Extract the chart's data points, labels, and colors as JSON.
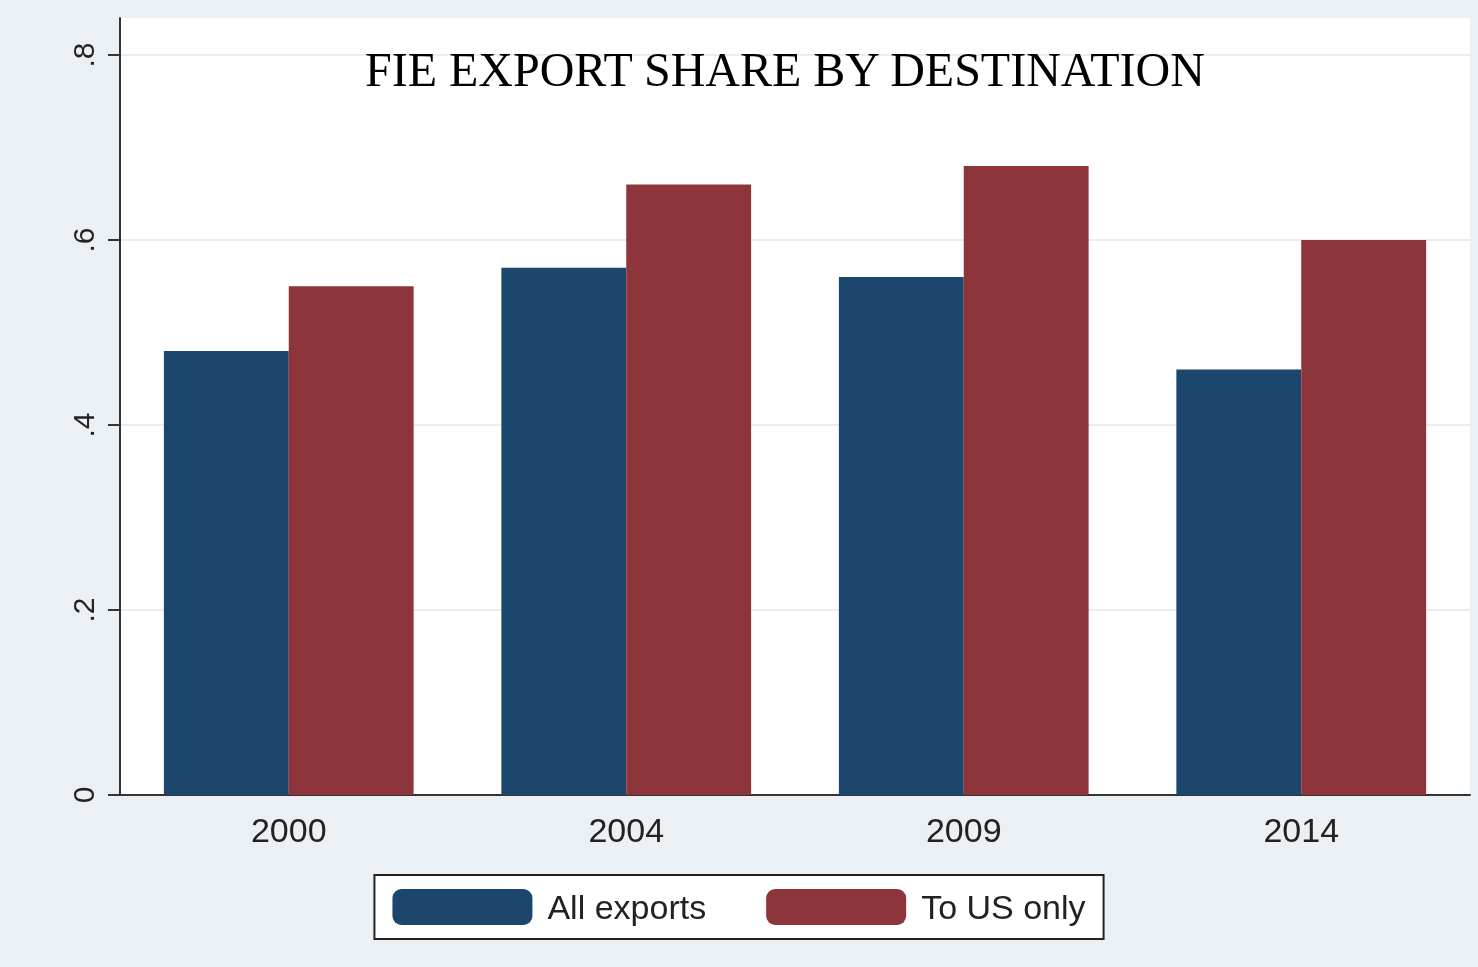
{
  "chart_data": {
    "type": "bar",
    "title": "FIE EXPORT SHARE BY DESTINATION",
    "categories": [
      "2000",
      "2004",
      "2009",
      "2014"
    ],
    "series": [
      {
        "name": "All exports",
        "color": "#1d466d",
        "values": [
          0.48,
          0.57,
          0.56,
          0.46
        ]
      },
      {
        "name": "To US only",
        "color": "#8e343b",
        "values": [
          0.55,
          0.66,
          0.68,
          0.6
        ]
      }
    ],
    "ylim": [
      0,
      0.84
    ],
    "yticks": [
      {
        "value": 0,
        "label": "0"
      },
      {
        "value": 0.2,
        "label": ".2"
      },
      {
        "value": 0.4,
        "label": ".4"
      },
      {
        "value": 0.6,
        "label": ".6"
      },
      {
        "value": 0.8,
        "label": ".8"
      }
    ],
    "grid": "y",
    "legend": "bottom"
  }
}
